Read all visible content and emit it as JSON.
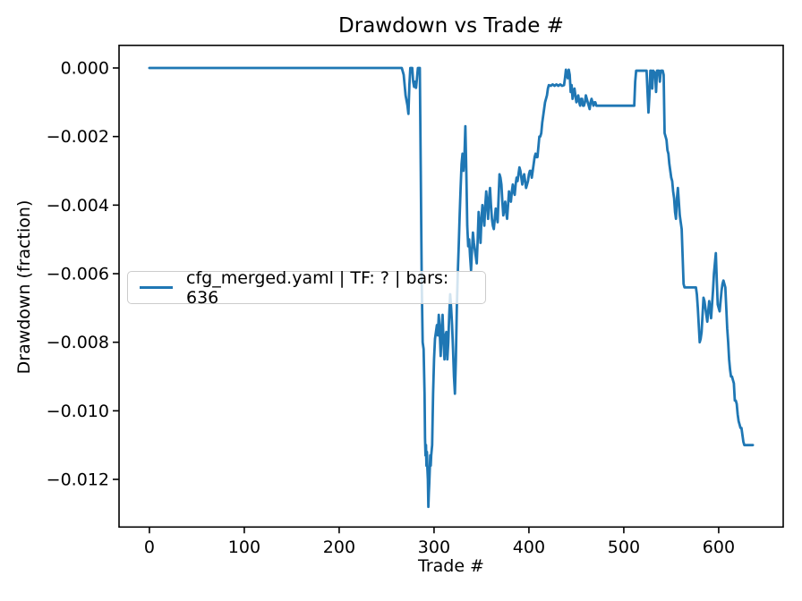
{
  "figure": {
    "kind": "matplotlib-line-plot",
    "background": "#ffffff"
  },
  "colors": {
    "line": "#1f77b4",
    "axis": "#000000",
    "text": "#000000",
    "legend_border": "#cccccc",
    "legend_background": "rgba(255,255,255,0.8)"
  },
  "legend": {
    "position": "center left",
    "entries": [
      {
        "label": "cfg_merged.yaml | TF: ? | bars: 636",
        "color": "#1f77b4"
      }
    ]
  },
  "chart_data": {
    "type": "line",
    "title": "Drawdown vs Trade #",
    "xlabel": "Trade #",
    "ylabel": "Drawdown (fraction)",
    "xlim": [
      -32,
      668
    ],
    "ylim": [
      -0.01339,
      0.00066
    ],
    "grid": false,
    "legend_position": "center left",
    "xticks": {
      "values": [
        0,
        100,
        200,
        300,
        400,
        500,
        600
      ],
      "labels": [
        "0",
        "100",
        "200",
        "300",
        "400",
        "500",
        "600"
      ]
    },
    "yticks": {
      "values": [
        0,
        -0.002,
        -0.004,
        -0.006,
        -0.008,
        -0.01,
        -0.012
      ],
      "labels": [
        "0.000",
        "−0.002",
        "−0.004",
        "−0.006",
        "−0.008",
        "−0.010",
        "−0.012"
      ]
    },
    "series": [
      {
        "name": "cfg_merged.yaml | TF: ? | bars: 636",
        "color": "#1f77b4",
        "linewidth": 2.8,
        "points": [
          [
            0,
            0
          ],
          [
            266,
            0
          ],
          [
            268,
            -0.0002
          ],
          [
            270,
            -0.0008
          ],
          [
            272,
            -0.0011
          ],
          [
            273,
            -0.00134
          ],
          [
            274,
            -0.0005
          ],
          [
            275,
            0
          ],
          [
            277,
            0
          ],
          [
            278,
            -0.0004
          ],
          [
            279,
            -0.00055
          ],
          [
            280,
            -0.0004
          ],
          [
            281,
            -0.00058
          ],
          [
            282,
            -0.0003
          ],
          [
            283,
            0
          ],
          [
            285,
            0
          ],
          [
            286,
            -0.003
          ],
          [
            287,
            -0.0062
          ],
          [
            288,
            -0.008
          ],
          [
            289,
            -0.0082
          ],
          [
            290,
            -0.0095
          ],
          [
            290.5,
            -0.0108
          ],
          [
            291,
            -0.0113
          ],
          [
            291.5,
            -0.011
          ],
          [
            292,
            -0.0116
          ],
          [
            292.5,
            -0.0112
          ],
          [
            293,
            -0.0117
          ],
          [
            293.5,
            -0.012
          ],
          [
            294,
            -0.0128
          ],
          [
            294.5,
            -0.0124
          ],
          [
            295,
            -0.0121
          ],
          [
            295.5,
            -0.0117
          ],
          [
            296,
            -0.0113
          ],
          [
            296.5,
            -0.0116
          ],
          [
            297,
            -0.0113
          ],
          [
            298,
            -0.011
          ],
          [
            299,
            -0.0095
          ],
          [
            300,
            -0.0085
          ],
          [
            301,
            -0.0079
          ],
          [
            302,
            -0.0077
          ],
          [
            303,
            -0.0075
          ],
          [
            304,
            -0.0078
          ],
          [
            305,
            -0.0072
          ],
          [
            306,
            -0.0077
          ],
          [
            307,
            -0.0084
          ],
          [
            308,
            -0.0076
          ],
          [
            309,
            -0.0072
          ],
          [
            310,
            -0.008
          ],
          [
            311,
            -0.0085
          ],
          [
            312,
            -0.0078
          ],
          [
            313,
            -0.0077
          ],
          [
            314,
            -0.0085
          ],
          [
            315,
            -0.008
          ],
          [
            316,
            -0.0072
          ],
          [
            317,
            -0.0066
          ],
          [
            318,
            -0.007
          ],
          [
            319,
            -0.0075
          ],
          [
            320,
            -0.0082
          ],
          [
            321,
            -0.009
          ],
          [
            322,
            -0.0095
          ],
          [
            323,
            -0.0085
          ],
          [
            324,
            -0.007
          ],
          [
            325,
            -0.006
          ],
          [
            326,
            -0.0052
          ],
          [
            327,
            -0.0043
          ],
          [
            328,
            -0.0035
          ],
          [
            329,
            -0.0028
          ],
          [
            330,
            -0.0025
          ],
          [
            331,
            -0.003
          ],
          [
            332,
            -0.0026
          ],
          [
            333,
            -0.0017
          ],
          [
            334,
            -0.003
          ],
          [
            335,
            -0.0046
          ],
          [
            336,
            -0.0052
          ],
          [
            337,
            -0.005
          ],
          [
            338,
            -0.0055
          ],
          [
            339,
            -0.0059
          ],
          [
            340,
            -0.0053
          ],
          [
            341,
            -0.0048
          ],
          [
            342,
            -0.0051
          ],
          [
            343,
            -0.0053
          ],
          [
            344,
            -0.0055
          ],
          [
            345,
            -0.0057
          ],
          [
            346,
            -0.005
          ],
          [
            347,
            -0.0042
          ],
          [
            348,
            -0.0046
          ],
          [
            349,
            -0.0051
          ],
          [
            350,
            -0.0044
          ],
          [
            351,
            -0.004
          ],
          [
            352,
            -0.0043
          ],
          [
            353,
            -0.0046
          ],
          [
            354,
            -0.004
          ],
          [
            355,
            -0.0036
          ],
          [
            356,
            -0.004
          ],
          [
            357,
            -0.0044
          ],
          [
            358,
            -0.0038
          ],
          [
            359,
            -0.0035
          ],
          [
            360,
            -0.004
          ],
          [
            361,
            -0.0044
          ],
          [
            362,
            -0.0046
          ],
          [
            363,
            -0.0047
          ],
          [
            364,
            -0.0044
          ],
          [
            365,
            -0.0041
          ],
          [
            366,
            -0.0043
          ],
          [
            367,
            -0.0045
          ],
          [
            368,
            -0.0038
          ],
          [
            369,
            -0.0031
          ],
          [
            370,
            -0.0032
          ],
          [
            371,
            -0.0034
          ],
          [
            372,
            -0.0039
          ],
          [
            373,
            -0.0043
          ],
          [
            374,
            -0.0041
          ],
          [
            375,
            -0.0039
          ],
          [
            376,
            -0.0042
          ],
          [
            377,
            -0.0044
          ],
          [
            378,
            -0.004
          ],
          [
            379,
            -0.0036
          ],
          [
            380,
            -0.0038
          ],
          [
            381,
            -0.0039
          ],
          [
            382,
            -0.0036
          ],
          [
            383,
            -0.0034
          ],
          [
            384,
            -0.0036
          ],
          [
            385,
            -0.0037
          ],
          [
            386,
            -0.0034
          ],
          [
            387,
            -0.0032
          ],
          [
            388,
            -0.0033
          ],
          [
            389,
            -0.0031
          ],
          [
            390,
            -0.0029
          ],
          [
            391,
            -0.003
          ],
          [
            392,
            -0.0032
          ],
          [
            393,
            -0.0034
          ],
          [
            394,
            -0.0032
          ],
          [
            395,
            -0.0031
          ],
          [
            396,
            -0.0033
          ],
          [
            397,
            -0.0035
          ],
          [
            398,
            -0.0034
          ],
          [
            399,
            -0.0033
          ],
          [
            400,
            -0.0031
          ],
          [
            401,
            -0.003
          ],
          [
            402,
            -0.003
          ],
          [
            403,
            -0.0032
          ],
          [
            404,
            -0.003
          ],
          [
            405,
            -0.0028
          ],
          [
            406,
            -0.0026
          ],
          [
            407,
            -0.0025
          ],
          [
            408,
            -0.0026
          ],
          [
            409,
            -0.0026
          ],
          [
            410,
            -0.0023
          ],
          [
            411,
            -0.002
          ],
          [
            412,
            -0.002
          ],
          [
            413,
            -0.0019
          ],
          [
            414,
            -0.0016
          ],
          [
            415,
            -0.0014
          ],
          [
            416,
            -0.0012
          ],
          [
            417,
            -0.001
          ],
          [
            418,
            -0.0009
          ],
          [
            419,
            -0.0008
          ],
          [
            420,
            -0.0006
          ],
          [
            421,
            -0.0005
          ],
          [
            423,
            -0.00052
          ],
          [
            425,
            -0.00048
          ],
          [
            427,
            -0.00052
          ],
          [
            429,
            -0.00048
          ],
          [
            431,
            -0.00052
          ],
          [
            433,
            -0.00048
          ],
          [
            435,
            -0.00052
          ],
          [
            437,
            -0.0005
          ],
          [
            438,
            -0.0003
          ],
          [
            439,
            -5e-05
          ],
          [
            440,
            -0.0002
          ],
          [
            441,
            -0.0003
          ],
          [
            442,
            -5e-05
          ],
          [
            443,
            -0.0002
          ],
          [
            444,
            -0.0007
          ],
          [
            445,
            -0.0005
          ],
          [
            446,
            -0.0009
          ],
          [
            447,
            -0.0007
          ],
          [
            448,
            -0.0006
          ],
          [
            449,
            -0.0008
          ],
          [
            450,
            -0.001
          ],
          [
            451,
            -0.0009
          ],
          [
            452,
            -0.0008
          ],
          [
            453,
            -0.001
          ],
          [
            454,
            -0.0011
          ],
          [
            455,
            -0.0009
          ],
          [
            456,
            -0.0009
          ],
          [
            457,
            -0.0011
          ],
          [
            458,
            -0.0011
          ],
          [
            459,
            -0.001
          ],
          [
            460,
            -0.0008
          ],
          [
            461,
            -0.0009
          ],
          [
            462,
            -0.001
          ],
          [
            463,
            -0.0011
          ],
          [
            464,
            -0.0012
          ],
          [
            465,
            -0.001
          ],
          [
            466,
            -0.0009
          ],
          [
            467,
            -0.001
          ],
          [
            468,
            -0.0011
          ],
          [
            469,
            -0.001
          ],
          [
            470,
            -0.001
          ],
          [
            471,
            -0.0011
          ],
          [
            474,
            -0.0011
          ],
          [
            511,
            -0.0011
          ],
          [
            512,
            -0.0004
          ],
          [
            513,
            -8e-05
          ],
          [
            524,
            -8e-05
          ],
          [
            525,
            -0.0007
          ],
          [
            526,
            -0.0013
          ],
          [
            527,
            -0.0008
          ],
          [
            528,
            -8e-05
          ],
          [
            529,
            -8e-05
          ],
          [
            530,
            -0.0006
          ],
          [
            531,
            -8e-05
          ],
          [
            533,
            -0.00015
          ],
          [
            534,
            -0.0007
          ],
          [
            535,
            -8e-05
          ],
          [
            537,
            -8e-05
          ],
          [
            538,
            -0.0004
          ],
          [
            539,
            -8e-05
          ],
          [
            541,
            -8e-05
          ],
          [
            542,
            -0.0002
          ],
          [
            543,
            -0.0019
          ],
          [
            544,
            -0.002
          ],
          [
            545,
            -0.0021
          ],
          [
            546,
            -0.0024
          ],
          [
            547,
            -0.0025
          ],
          [
            548,
            -0.0028
          ],
          [
            549,
            -0.003
          ],
          [
            550,
            -0.0032
          ],
          [
            551,
            -0.0033
          ],
          [
            552,
            -0.0036
          ],
          [
            553,
            -0.0038
          ],
          [
            554,
            -0.0042
          ],
          [
            555,
            -0.0044
          ],
          [
            556,
            -0.0038
          ],
          [
            557,
            -0.0035
          ],
          [
            558,
            -0.0039
          ],
          [
            559,
            -0.0043
          ],
          [
            560,
            -0.0045
          ],
          [
            561,
            -0.0047
          ],
          [
            562,
            -0.0055
          ],
          [
            563,
            -0.0063
          ],
          [
            564,
            -0.0064
          ],
          [
            576,
            -0.0064
          ],
          [
            577,
            -0.0066
          ],
          [
            578,
            -0.007
          ],
          [
            579,
            -0.0075
          ],
          [
            580,
            -0.008
          ],
          [
            581,
            -0.0079
          ],
          [
            582,
            -0.0077
          ],
          [
            583,
            -0.0072
          ],
          [
            584,
            -0.0067
          ],
          [
            585,
            -0.0068
          ],
          [
            586,
            -0.007
          ],
          [
            587,
            -0.0072
          ],
          [
            588,
            -0.0074
          ],
          [
            589,
            -0.0071
          ],
          [
            590,
            -0.0068
          ],
          [
            591,
            -0.007
          ],
          [
            592,
            -0.0073
          ],
          [
            593,
            -0.0069
          ],
          [
            594,
            -0.0065
          ],
          [
            595,
            -0.006
          ],
          [
            596,
            -0.0057
          ],
          [
            597,
            -0.0054
          ],
          [
            598,
            -0.0062
          ],
          [
            599,
            -0.0069
          ],
          [
            600,
            -0.007
          ],
          [
            601,
            -0.0071
          ],
          [
            602,
            -0.0068
          ],
          [
            603,
            -0.0065
          ],
          [
            604,
            -0.0063
          ],
          [
            605,
            -0.0062
          ],
          [
            606,
            -0.0063
          ],
          [
            607,
            -0.0064
          ],
          [
            608,
            -0.007
          ],
          [
            609,
            -0.0076
          ],
          [
            610,
            -0.008
          ],
          [
            611,
            -0.0085
          ],
          [
            612,
            -0.0088
          ],
          [
            613,
            -0.009
          ],
          [
            614,
            -0.009
          ],
          [
            615,
            -0.0091
          ],
          [
            616,
            -0.0092
          ],
          [
            617,
            -0.0097
          ],
          [
            618,
            -0.0097
          ],
          [
            619,
            -0.0098
          ],
          [
            620,
            -0.0101
          ],
          [
            621,
            -0.0103
          ],
          [
            622,
            -0.0104
          ],
          [
            623,
            -0.0105
          ],
          [
            624,
            -0.0105
          ],
          [
            625,
            -0.0107
          ],
          [
            626,
            -0.0109
          ],
          [
            627,
            -0.011
          ],
          [
            636,
            -0.011
          ]
        ]
      }
    ]
  }
}
